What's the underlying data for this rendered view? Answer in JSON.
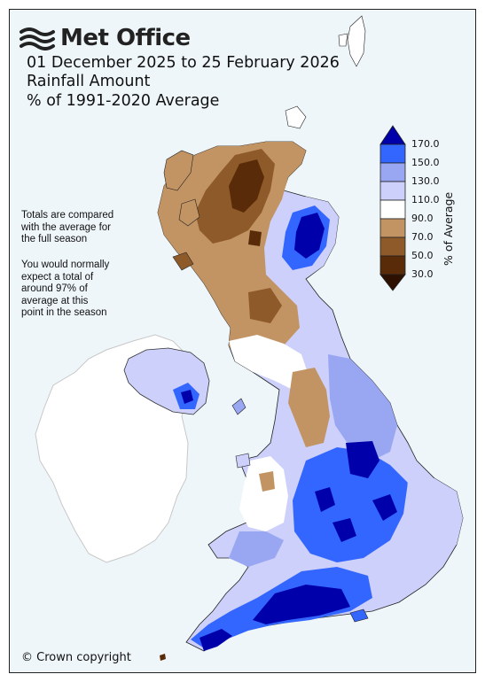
{
  "header": {
    "brand": "Met Office",
    "period": "01 December 2025 to 25 February 2026",
    "variable": "Rainfall Amount",
    "baseline": "% of 1991-2020 Average"
  },
  "notes": {
    "comparison": [
      "Totals are compared",
      "with the average for",
      "the full season"
    ],
    "expectation": [
      "You would normally",
      "expect a total of",
      "around 97% of",
      "average at this",
      "point in the season"
    ]
  },
  "legend": {
    "title": "% of Average",
    "ticks": [
      "170.0",
      "150.0",
      "130.0",
      "110.0",
      "90.0",
      "70.0",
      "50.0",
      "30.0"
    ],
    "colors": {
      "above_170": "#0000aa",
      "150_170": "#3366ff",
      "130_150": "#99a6f2",
      "110_130": "#ccd0fa",
      "90_110": "#ffffff",
      "70_90": "#c39463",
      "50_70": "#8f5a2a",
      "30_50": "#5a2b08",
      "below_30": "#2e1000"
    }
  },
  "footer": {
    "copyright": "© Crown copyright"
  },
  "icons": {
    "logo": "met-office-waves-icon"
  }
}
